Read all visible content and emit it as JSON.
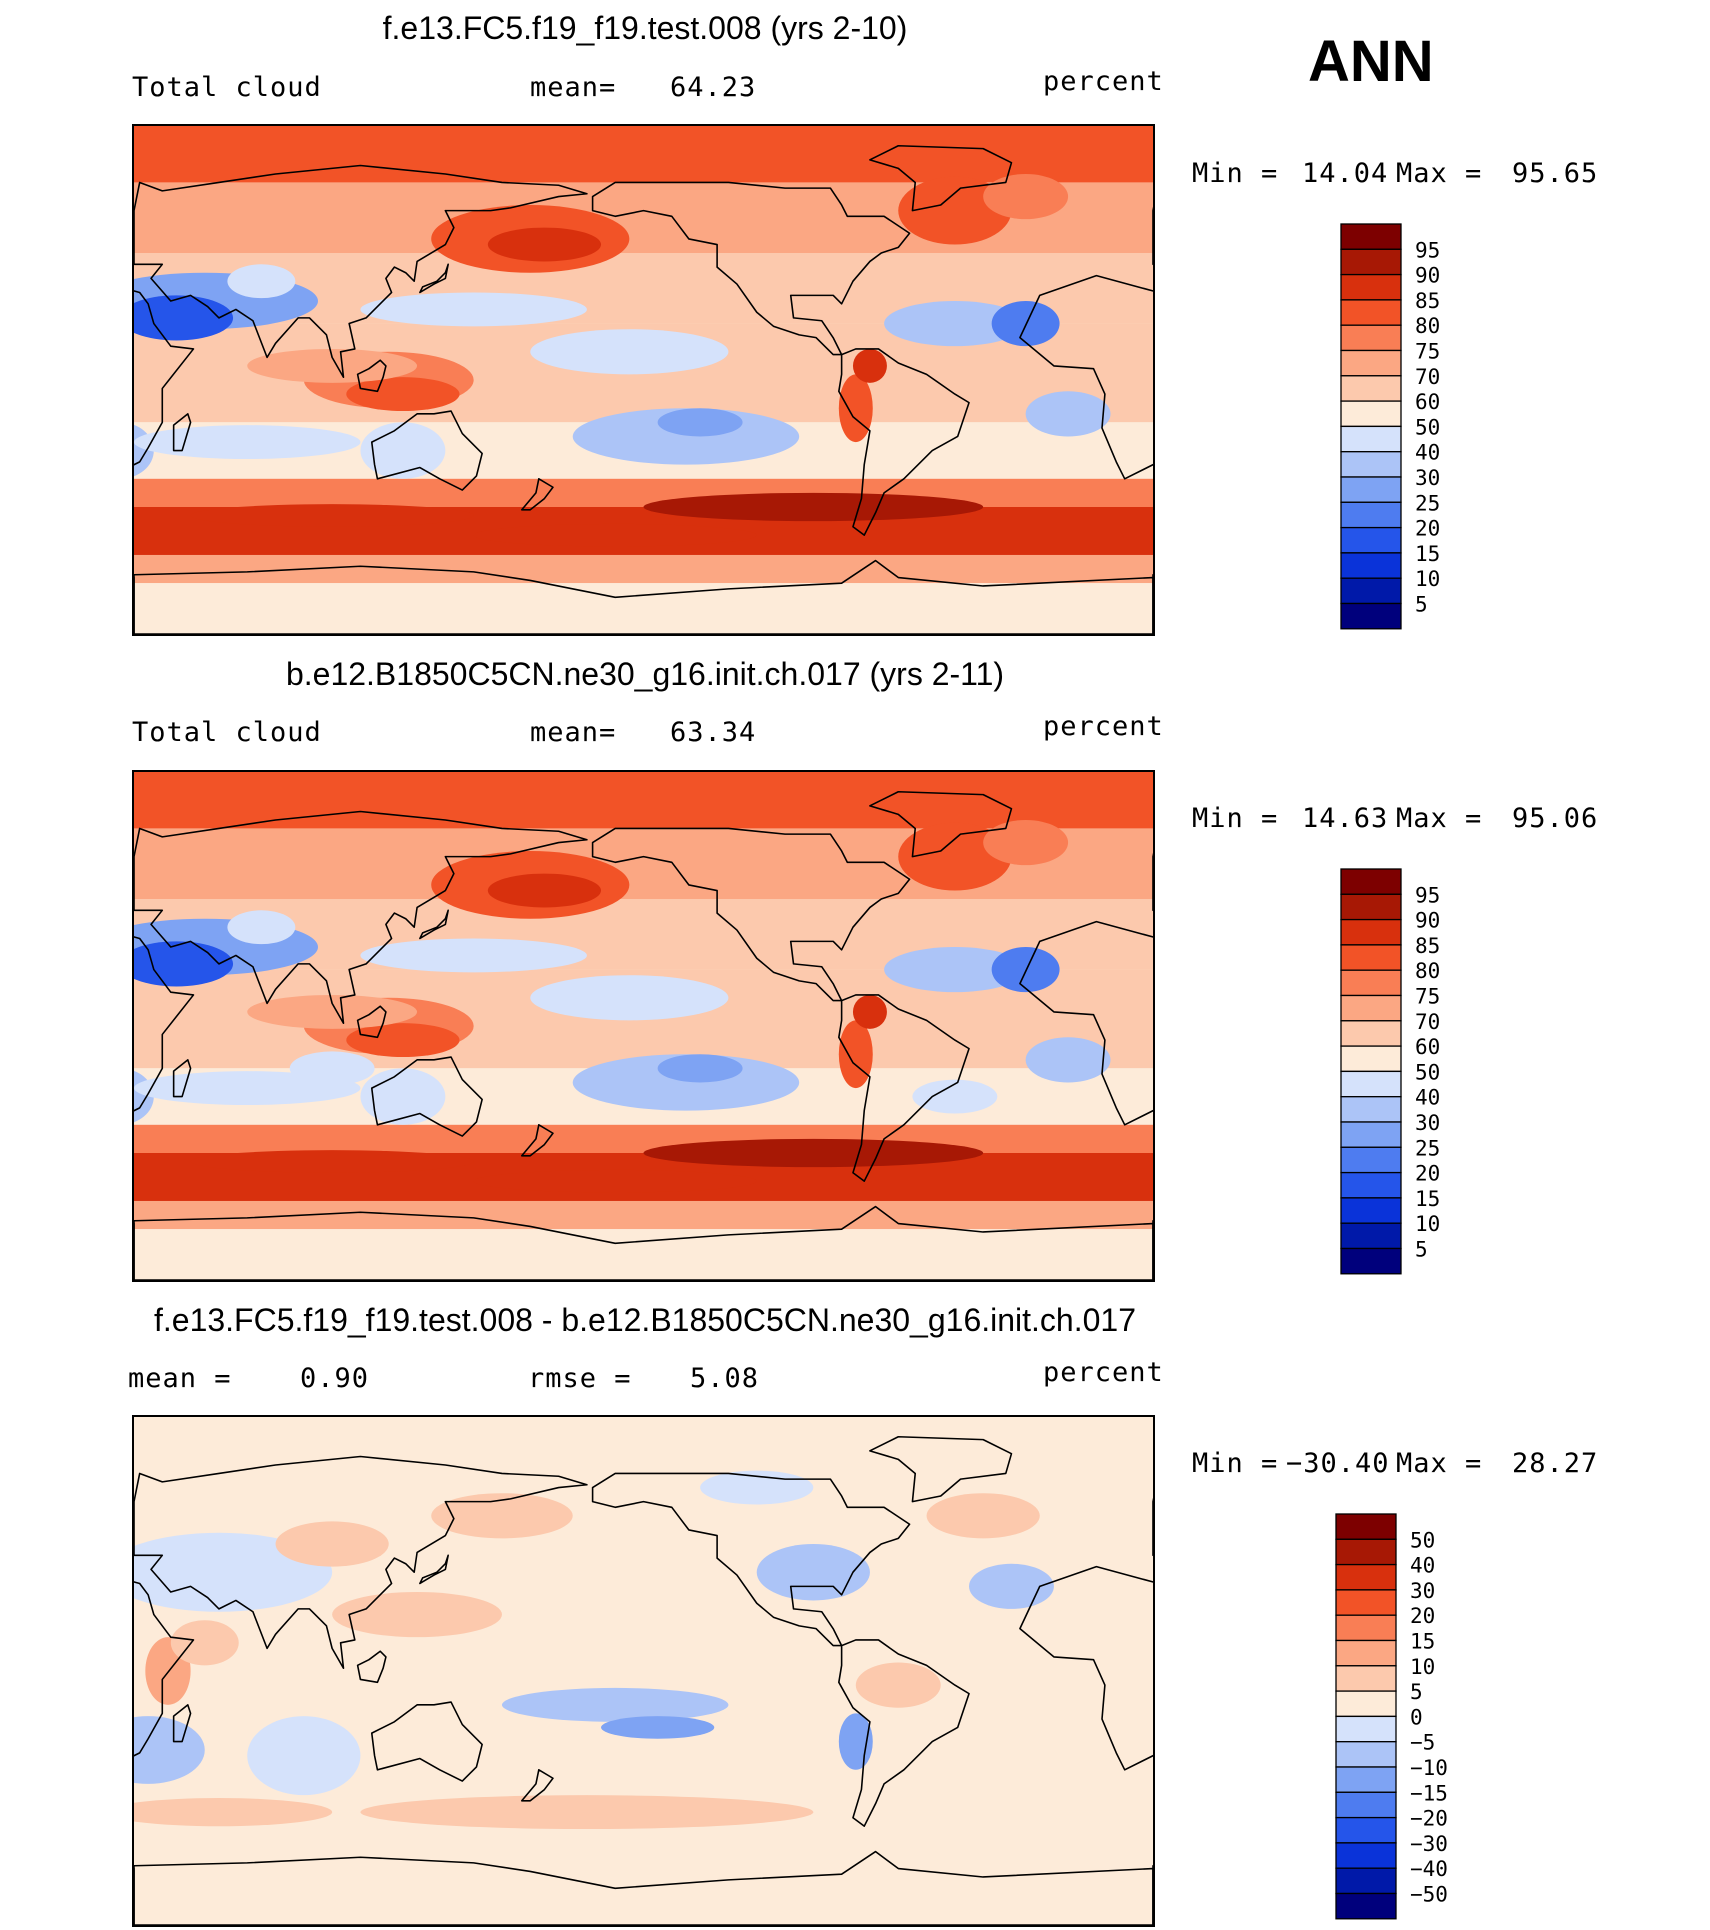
{
  "season_label": "ANN",
  "colors": {
    "outline": "#000000",
    "levels_abs": [
      "#00007c",
      "#0019a9",
      "#0a33d9",
      "#2555ea",
      "#4e7cf0",
      "#7ea3f3",
      "#acc4f7",
      "#d5e2fb",
      "#fdebd9",
      "#fcc9ad",
      "#fba783",
      "#f97e55",
      "#f25327",
      "#d8300d",
      "#a71805",
      "#7d0000"
    ],
    "levels_diff": [
      "#00007c",
      "#0019a9",
      "#0a33d9",
      "#2555ea",
      "#4e7cf0",
      "#7ea3f3",
      "#acc4f7",
      "#d5e2fb",
      "#fdebd9",
      "#fcc9ad",
      "#fba783",
      "#f97e55",
      "#f25327",
      "#d8300d",
      "#a71805",
      "#7d0000"
    ]
  },
  "panels": [
    {
      "title": "f.e13.FC5.f19_f19.test.008 (yrs 2-10)",
      "left_label": "Total cloud",
      "mean_label": "mean=",
      "mean_value": "64.23",
      "units": "percent",
      "min_label": "Min =",
      "min_value": "14.04",
      "max_label": "Max =",
      "max_value": "95.65"
    },
    {
      "title": "b.e12.B1850C5CN.ne30_g16.init.ch.017 (yrs 2-11)",
      "left_label": "Total cloud",
      "mean_label": "mean=",
      "mean_value": "63.34",
      "units": "percent",
      "min_label": "Min =",
      "min_value": "14.63",
      "max_label": "Max =",
      "max_value": "95.06"
    },
    {
      "title": "f.e13.FC5.f19_f19.test.008 - b.e12.B1850C5CN.ne30_g16.init.ch.017",
      "left_label": "mean =",
      "mean_label": "",
      "mean_value": "0.90",
      "rmse_label": "rmse =",
      "rmse_value": "5.08",
      "units": "percent",
      "min_label": "Min =",
      "min_value": "−30.40",
      "max_label": "Max =",
      "max_value": "28.27"
    }
  ],
  "colorbars": {
    "abs_ticks": [
      "95",
      "90",
      "85",
      "80",
      "75",
      "70",
      "60",
      "50",
      "40",
      "30",
      "25",
      "20",
      "15",
      "10",
      "5"
    ],
    "diff_ticks": [
      "50",
      "40",
      "30",
      "20",
      "15",
      "10",
      "5",
      "0",
      "−5",
      "−10",
      "−15",
      "−20",
      "−30",
      "−40",
      "−50"
    ]
  },
  "chart_data": {
    "type": "heatmap",
    "variable": "Total cloud",
    "units": "percent",
    "season": "ANN",
    "panels": [
      {
        "name": "f.e13.FC5.f19_f19.test.008 (yrs 2-10)",
        "mean": 64.23,
        "min": 14.04,
        "max": 95.65
      },
      {
        "name": "b.e12.B1850C5CN.ne30_g16.init.ch.017 (yrs 2-11)",
        "mean": 63.34,
        "min": 14.63,
        "max": 95.06
      },
      {
        "name": "f.e13.FC5.f19_f19.test.008 - b.e12.B1850C5CN.ne30_g16.init.ch.017",
        "mean": 0.9,
        "rmse": 5.08,
        "min": -30.4,
        "max": 28.27
      }
    ],
    "contour_levels_abs": [
      5,
      10,
      15,
      20,
      25,
      30,
      40,
      50,
      60,
      70,
      75,
      80,
      85,
      90,
      95
    ],
    "contour_levels_diff": [
      -50,
      -40,
      -30,
      -20,
      -15,
      -10,
      -5,
      0,
      5,
      10,
      15,
      20,
      30,
      40,
      50
    ]
  }
}
